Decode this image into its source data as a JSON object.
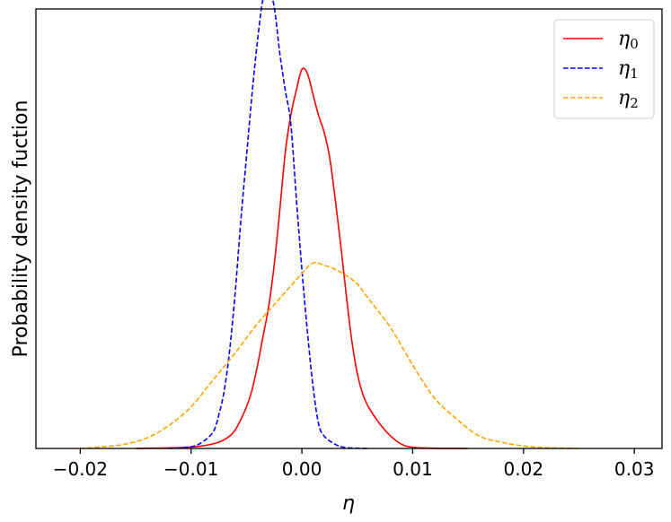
{
  "chart_data": {
    "type": "line",
    "xlabel": "η",
    "ylabel": "Probability density fuction",
    "xlim": [
      -0.024,
      0.0325
    ],
    "ylim": [
      0,
      1.055
    ],
    "xticks": [
      -0.02,
      -0.01,
      0.0,
      0.01,
      0.02,
      0.03
    ],
    "xtick_labels": [
      "−0.02",
      "−0.01",
      "0.00",
      "0.01",
      "0.02",
      "0.03"
    ],
    "yticks_visible": false,
    "grid": false,
    "legend_position": "top-right",
    "series": [
      {
        "name": "η₀",
        "legend_base": "η",
        "legend_sub": "0",
        "color": "#ff0000",
        "dash": "solid",
        "x": [
          -0.015,
          -0.011,
          -0.009,
          -0.0075,
          -0.0065,
          -0.006,
          -0.0055,
          -0.005,
          -0.0045,
          -0.004,
          -0.0035,
          -0.003,
          -0.0025,
          -0.002,
          -0.0015,
          -0.001,
          -0.0005,
          0.0,
          0.0005,
          0.001,
          0.0015,
          0.002,
          0.0025,
          0.003,
          0.0035,
          0.004,
          0.0045,
          0.005,
          0.0055,
          0.006,
          0.007,
          0.008,
          0.009,
          0.01,
          0.012,
          0.015
        ],
        "y": [
          0.0,
          0.002,
          0.006,
          0.015,
          0.03,
          0.045,
          0.07,
          0.1,
          0.14,
          0.2,
          0.27,
          0.34,
          0.44,
          0.57,
          0.71,
          0.8,
          0.86,
          0.91,
          0.9,
          0.85,
          0.8,
          0.76,
          0.7,
          0.6,
          0.49,
          0.37,
          0.26,
          0.18,
          0.13,
          0.1,
          0.06,
          0.03,
          0.01,
          0.003,
          0.0005,
          0.0
        ]
      },
      {
        "name": "η₁",
        "legend_base": "η",
        "legend_sub": "1",
        "color": "#0000ff",
        "dash": "dashed",
        "x": [
          -0.012,
          -0.01,
          -0.009,
          -0.008,
          -0.0075,
          -0.007,
          -0.0065,
          -0.006,
          -0.0055,
          -0.005,
          -0.0045,
          -0.004,
          -0.0035,
          -0.003,
          -0.0025,
          -0.002,
          -0.0015,
          -0.001,
          -0.0005,
          0.0,
          0.0005,
          0.001,
          0.0015,
          0.002,
          0.003,
          0.004,
          0.006
        ],
        "y": [
          0.0,
          0.004,
          0.015,
          0.04,
          0.08,
          0.14,
          0.24,
          0.38,
          0.55,
          0.7,
          0.85,
          0.98,
          1.08,
          1.1,
          1.06,
          0.95,
          0.86,
          0.78,
          0.6,
          0.43,
          0.28,
          0.15,
          0.06,
          0.03,
          0.01,
          0.002,
          0.0
        ]
      },
      {
        "name": "η₂",
        "legend_base": "η",
        "legend_sub": "2",
        "color": "#ffa500",
        "dash": "dashed",
        "x": [
          -0.02,
          -0.018,
          -0.016,
          -0.014,
          -0.012,
          -0.01,
          -0.008,
          -0.006,
          -0.004,
          -0.002,
          0.0,
          0.001,
          0.002,
          0.003,
          0.004,
          0.005,
          0.006,
          0.008,
          0.01,
          0.012,
          0.014,
          0.016,
          0.018,
          0.02,
          0.022,
          0.025
        ],
        "y": [
          0.0,
          0.004,
          0.01,
          0.025,
          0.055,
          0.1,
          0.165,
          0.23,
          0.3,
          0.36,
          0.42,
          0.445,
          0.44,
          0.43,
          0.415,
          0.395,
          0.36,
          0.29,
          0.2,
          0.12,
          0.07,
          0.03,
          0.015,
          0.006,
          0.002,
          0.0
        ]
      }
    ]
  }
}
